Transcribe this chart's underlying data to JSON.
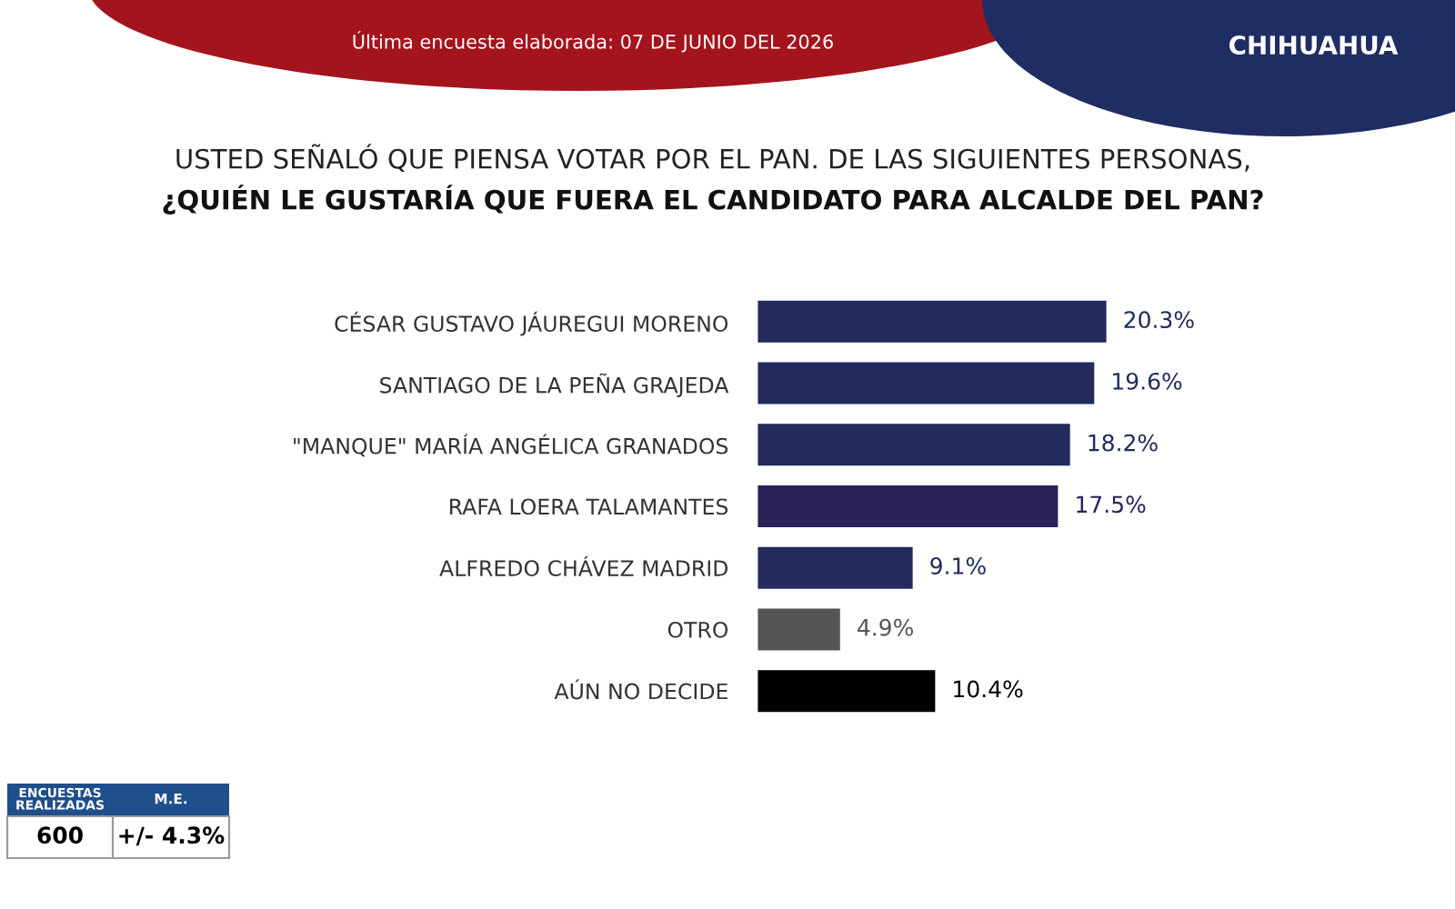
{
  "chart_data": {
    "type": "bar",
    "orientation": "horizontal",
    "title": "USTED SEÑALÓ QUE PIENSA VOTAR POR EL PAN. DE LAS SIGUIENTES PERSONAS,",
    "subtitle": "¿QUIÉN LE GUSTARÍA QUE FUERA EL CANDIDATO PARA ALCALDE DEL PAN?",
    "categories": [
      "CÉSAR GUSTAVO JÁUREGUI MORENO",
      "SANTIAGO DE LA PEÑA GRAJEDA",
      "\"MANQUE\" MARÍA ANGÉLICA GRANADOS",
      "RAFA LOERA TALAMANTES",
      "ALFREDO CHÁVEZ MADRID",
      "OTRO",
      "AÚN NO DECIDE"
    ],
    "values": [
      20.3,
      19.6,
      18.2,
      17.5,
      9.1,
      4.9,
      10.4
    ],
    "value_labels": [
      "20.3%",
      "19.6%",
      "18.2%",
      "17.5%",
      "9.1%",
      "4.9%",
      "10.4%"
    ],
    "colors": [
      "#222b5c",
      "#222b5c",
      "#222b5c",
      "#2a2159",
      "#222b5c",
      "#555555",
      "#000000"
    ],
    "annotations": [
      "Última encuesta elaborada: 07 DE JUNIO DEL 2026",
      "CHIHUAHUA",
      "ENCUESTAS\nREALIZADAS",
      "M.E.",
      "600",
      "+/- 4.3%"
    ]
  }
}
